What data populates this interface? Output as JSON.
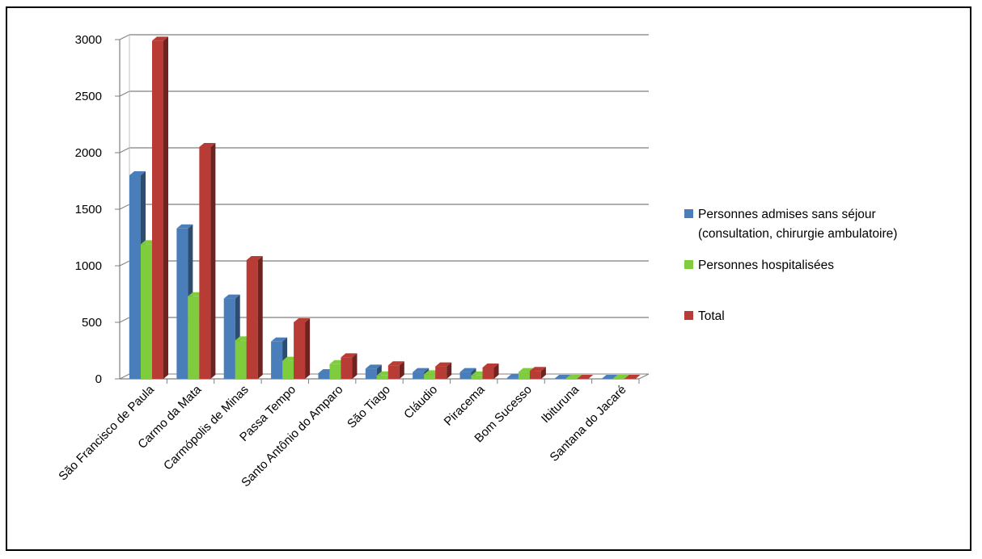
{
  "chart_data": {
    "type": "bar",
    "categories": [
      "São Francisco de Paula",
      "Carmo da Mata",
      "Carmópolis de Minas",
      "Passa Tempo",
      "Santo Antônio do Amparo",
      "São Tiago",
      "Cláudio",
      "Piracema",
      "Bom Sucesso",
      "Ibituruna",
      "Santana do Jacaré"
    ],
    "series": [
      {
        "name": "Personnes admises sans séjour (consultation, chirurgie ambulatoire)",
        "legend_lines": [
          "Personnes admises sans séjour",
          "(consultation, chirurgie ambulatoire)"
        ],
        "color": "#4a7ebb",
        "values": [
          1800,
          1330,
          710,
          330,
          50,
          90,
          60,
          60,
          10,
          0,
          0
        ]
      },
      {
        "name": "Personnes hospitalisées",
        "legend_lines": [
          "Personnes hospitalisées"
        ],
        "color": "#7fcc3e",
        "values": [
          1190,
          730,
          340,
          160,
          130,
          30,
          40,
          30,
          60,
          0,
          0
        ]
      },
      {
        "name": "Total",
        "legend_lines": [
          "Total"
        ],
        "color": "#b83b35",
        "values": [
          2990,
          2050,
          1050,
          500,
          190,
          120,
          110,
          100,
          70,
          0,
          0
        ]
      }
    ],
    "yticks": [
      "0",
      "500",
      "1000",
      "1500",
      "2000",
      "2500",
      "3000"
    ],
    "ylim": [
      0,
      3000
    ],
    "grid": true,
    "legend_position": "right",
    "xlabel": "",
    "ylabel": "",
    "title": ""
  }
}
